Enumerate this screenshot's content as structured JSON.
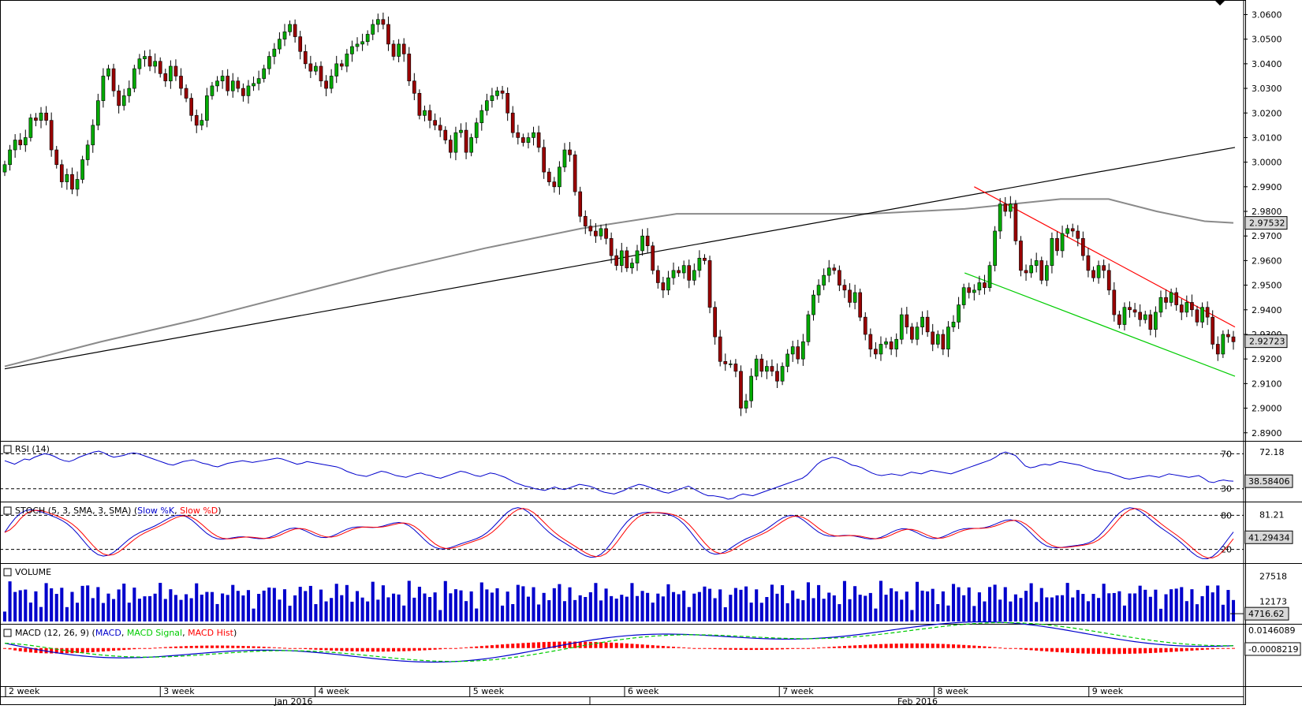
{
  "chart_data": {
    "type": "candlestick",
    "instrument_price_axis": {
      "ticks": [
        "3.0600",
        "3.0500",
        "3.0400",
        "3.0300",
        "3.0200",
        "3.0100",
        "3.0000",
        "2.9900",
        "2.9800",
        "2.9700",
        "2.9600",
        "2.9500",
        "2.9400",
        "2.9300",
        "2.9200",
        "2.9100",
        "2.9000",
        "2.8900"
      ],
      "ylim": [
        2.888,
        3.064
      ],
      "last_price_label": "2.92723",
      "ma_label": "2.97532",
      "last_price": 2.92723,
      "ma_last": 2.97532
    },
    "time_axis": {
      "week_labels": [
        "2 week",
        "3 week",
        "4 week",
        "5 week",
        "6 week",
        "7 week",
        "8 week",
        "9 week"
      ],
      "month_labels": [
        "Jan 2016",
        "Feb 2016"
      ]
    },
    "price_series_close": [
      2.999,
      3.005,
      3.009,
      3.007,
      3.01,
      3.018,
      3.017,
      3.02,
      3.017,
      3.005,
      2.999,
      2.992,
      2.995,
      2.989,
      2.993,
      3.001,
      3.007,
      3.015,
      3.025,
      3.035,
      3.038,
      3.029,
      3.023,
      3.027,
      3.03,
      3.038,
      3.042,
      3.043,
      3.039,
      3.041,
      3.036,
      3.033,
      3.039,
      3.035,
      3.03,
      3.026,
      3.019,
      3.015,
      3.017,
      3.027,
      3.031,
      3.033,
      3.035,
      3.029,
      3.033,
      3.03,
      3.027,
      3.031,
      3.032,
      3.034,
      3.038,
      3.043,
      3.046,
      3.05,
      3.053,
      3.056,
      3.051,
      3.045,
      3.04,
      3.037,
      3.039,
      3.033,
      3.03,
      3.035,
      3.04,
      3.039,
      3.044,
      3.047,
      3.048,
      3.049,
      3.052,
      3.056,
      3.058,
      3.056,
      3.048,
      3.043,
      3.048,
      3.044,
      3.033,
      3.028,
      3.019,
      3.021,
      3.017,
      3.015,
      3.013,
      3.009,
      3.004,
      3.012,
      3.013,
      3.004,
      3.01,
      3.016,
      3.021,
      3.025,
      3.027,
      3.029,
      3.028,
      3.02,
      3.012,
      3.01,
      3.008,
      3.01,
      3.012,
      3.006,
      2.996,
      2.992,
      2.99,
      2.998,
      3.005,
      3.003,
      2.988,
      2.978,
      2.974,
      2.972,
      2.97,
      2.973,
      2.969,
      2.962,
      2.958,
      2.964,
      2.957,
      2.959,
      2.964,
      2.97,
      2.966,
      2.956,
      2.951,
      2.948,
      2.953,
      2.956,
      2.955,
      2.958,
      2.952,
      2.956,
      2.961,
      2.96,
      2.941,
      2.929,
      2.919,
      2.918,
      2.918,
      2.915,
      2.9,
      2.903,
      2.913,
      2.92,
      2.915,
      2.917,
      2.915,
      2.911,
      2.917,
      2.922,
      2.925,
      2.92,
      2.927,
      2.938,
      2.946,
      2.95,
      2.954,
      2.957,
      2.956,
      2.95,
      2.948,
      2.943,
      2.947,
      2.937,
      2.93,
      2.924,
      2.922,
      2.926,
      2.927,
      2.924,
      2.928,
      2.938,
      2.933,
      2.928,
      2.933,
      2.937,
      2.931,
      2.926,
      2.93,
      2.924,
      2.933,
      2.935,
      2.942,
      2.949,
      2.947,
      2.948,
      2.951,
      2.949,
      2.958,
      2.972,
      2.983,
      2.98,
      2.983,
      2.968,
      2.956,
      2.955,
      2.958,
      2.96,
      2.952,
      2.958,
      2.969,
      2.964,
      2.971,
      2.973,
      2.972,
      2.969,
      2.962,
      2.956,
      2.953,
      2.958,
      2.956,
      2.948,
      2.938,
      2.934,
      2.941,
      2.94,
      2.939,
      2.936,
      2.938,
      2.932,
      2.939,
      2.945,
      2.943,
      2.947,
      2.942,
      2.939,
      2.943,
      2.94,
      2.935,
      2.941,
      2.937,
      2.926,
      2.922,
      2.93,
      2.929,
      2.927
    ],
    "moving_average": {
      "points": [
        [
          0,
          2.917
        ],
        [
          20,
          2.927
        ],
        [
          40,
          2.936
        ],
        [
          60,
          2.946
        ],
        [
          80,
          2.956
        ],
        [
          100,
          2.965
        ],
        [
          120,
          2.973
        ],
        [
          140,
          2.979
        ],
        [
          160,
          2.979
        ],
        [
          180,
          2.979
        ],
        [
          200,
          2.981
        ],
        [
          210,
          2.983
        ],
        [
          220,
          2.985
        ],
        [
          230,
          2.985
        ],
        [
          240,
          2.98
        ],
        [
          250,
          2.976
        ],
        [
          256,
          2.9753
        ]
      ]
    },
    "trend_lines": [
      {
        "color": "#000000",
        "from": [
          0,
          2.916
        ],
        "to": [
          256,
          3.006
        ]
      },
      {
        "color": "#ff0000",
        "from": [
          202,
          2.99
        ],
        "to": [
          256,
          2.933
        ]
      },
      {
        "color": "#00cc00",
        "from": [
          200,
          2.955
        ],
        "to": [
          256,
          2.913
        ]
      }
    ],
    "rsi": {
      "label": "RSI (14)",
      "levels": [
        "70",
        "30"
      ],
      "last_label": "38.58406",
      "top_label": "72.18",
      "ylim": [
        18,
        82
      ],
      "values": [
        62,
        60,
        58,
        61,
        64,
        63,
        66,
        68,
        70,
        69,
        67,
        64,
        62,
        61,
        63,
        66,
        68,
        70,
        72,
        73,
        71,
        68,
        66,
        67,
        68,
        70,
        71,
        70,
        68,
        66,
        64,
        62,
        60,
        58,
        57,
        59,
        61,
        62,
        63,
        61,
        59,
        58,
        56,
        55,
        57,
        59,
        60,
        61,
        62,
        61,
        60,
        61,
        62,
        63,
        64,
        65,
        64,
        62,
        60,
        58,
        59,
        61,
        60,
        59,
        58,
        57,
        56,
        55,
        53,
        50,
        48,
        46,
        45,
        44,
        46,
        48,
        50,
        49,
        47,
        45,
        44,
        43,
        45,
        47,
        48,
        46,
        45,
        43,
        42,
        44,
        46,
        48,
        50,
        49,
        47,
        45,
        44,
        46,
        48,
        47,
        45,
        43,
        40,
        37,
        35,
        33,
        32,
        30,
        29,
        28,
        30,
        32,
        30,
        29,
        31,
        33,
        35,
        34,
        33,
        31,
        28,
        26,
        25,
        24,
        26,
        28,
        31,
        33,
        35,
        34,
        32,
        30,
        28,
        26,
        25,
        27,
        29,
        31,
        33,
        30,
        27,
        24,
        22,
        22,
        21,
        20,
        18,
        19,
        22,
        24,
        23,
        22,
        24,
        26,
        28,
        30,
        32,
        34,
        36,
        38,
        40,
        42,
        46,
        52,
        58,
        62,
        64,
        66,
        65,
        63,
        60,
        57,
        56,
        54,
        51,
        48,
        46,
        45,
        46,
        47,
        46,
        45,
        47,
        49,
        48,
        47,
        49,
        51,
        50,
        49,
        48,
        47,
        49,
        51,
        53,
        55,
        57,
        59,
        61,
        63,
        66,
        70,
        72,
        70,
        68,
        62,
        56,
        54,
        55,
        57,
        58,
        57,
        59,
        61,
        60,
        59,
        58,
        57,
        55,
        53,
        51,
        50,
        49,
        48,
        46,
        44,
        42,
        41,
        42,
        43,
        44,
        45,
        44,
        43,
        45,
        47,
        46,
        45,
        44,
        43,
        44,
        45,
        42,
        38,
        37,
        39,
        40,
        39,
        38.6
      ],
      "color": "#0000cc"
    },
    "stoch": {
      "label": "STOCH (5, 3, SMA, 3, SMA)",
      "legend": [
        "Slow %K",
        "Slow %D"
      ],
      "levels": [
        "80",
        "20"
      ],
      "top_label": "81.21",
      "last_label": "41.29434",
      "ylim": [
        0,
        100
      ],
      "k_color": "#0000cc",
      "d_color": "#ff0000"
    },
    "volume": {
      "label": "VOLUME",
      "top_label": "27518",
      "mid_label": "12173",
      "last_label": "4716.62",
      "ylim": [
        0,
        34000
      ],
      "color": "#0000cc"
    },
    "macd": {
      "label": "MACD (12, 26, 9)",
      "legend": [
        "MACD",
        "MACD Signal",
        "MACD Hist"
      ],
      "top_label": "0.0146089",
      "last_label": "-0.0008219",
      "colors": {
        "macd": "#0000cc",
        "signal": "#00cc00",
        "hist": "#ff0000"
      },
      "ylim": [
        -0.03,
        0.018
      ]
    }
  }
}
